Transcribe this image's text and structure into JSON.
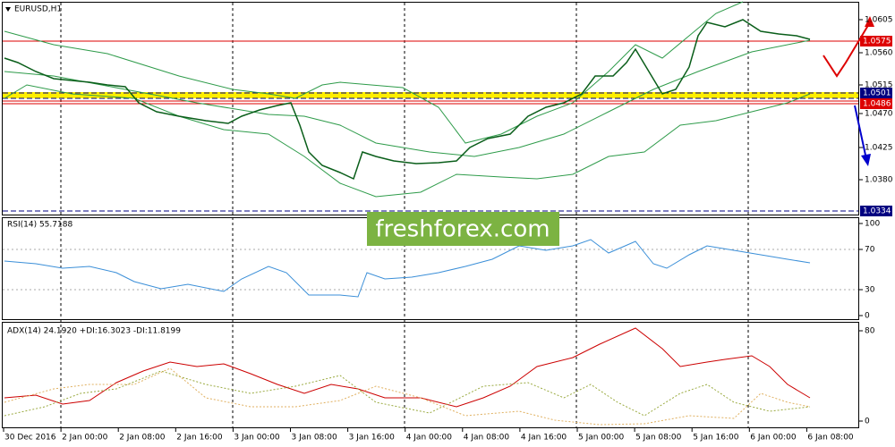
{
  "chart_window": {
    "symbol_label": "EURUSD,H1",
    "price_scale": [
      "1.0605",
      "1.0560",
      "1.0515",
      "1.0470",
      "1.0425",
      "1.0380"
    ],
    "price_tags": [
      "1.0575",
      "1.0501",
      "1.0486",
      "1.0334"
    ]
  },
  "rsi_panel": {
    "label": "RSI(14) 55.7188",
    "scale": [
      "100",
      "70",
      "30",
      "0"
    ]
  },
  "adx_panel": {
    "label": "ADX(14) 24.1920 +DI:16.3023 -DI:11.8199",
    "scale": [
      "80",
      "0"
    ]
  },
  "time_axis": [
    "30 Dec 2016",
    "2 Jan 00:00",
    "2 Jan 08:00",
    "2 Jan 16:00",
    "3 Jan 00:00",
    "3 Jan 08:00",
    "3 Jan 16:00",
    "4 Jan 00:00",
    "4 Jan 08:00",
    "4 Jan 16:00",
    "5 Jan 00:00",
    "5 Jan 08:00",
    "5 Jan 16:00",
    "6 Jan 00:00",
    "6 Jan 08:00"
  ],
  "watermark": "freshforex.com"
}
